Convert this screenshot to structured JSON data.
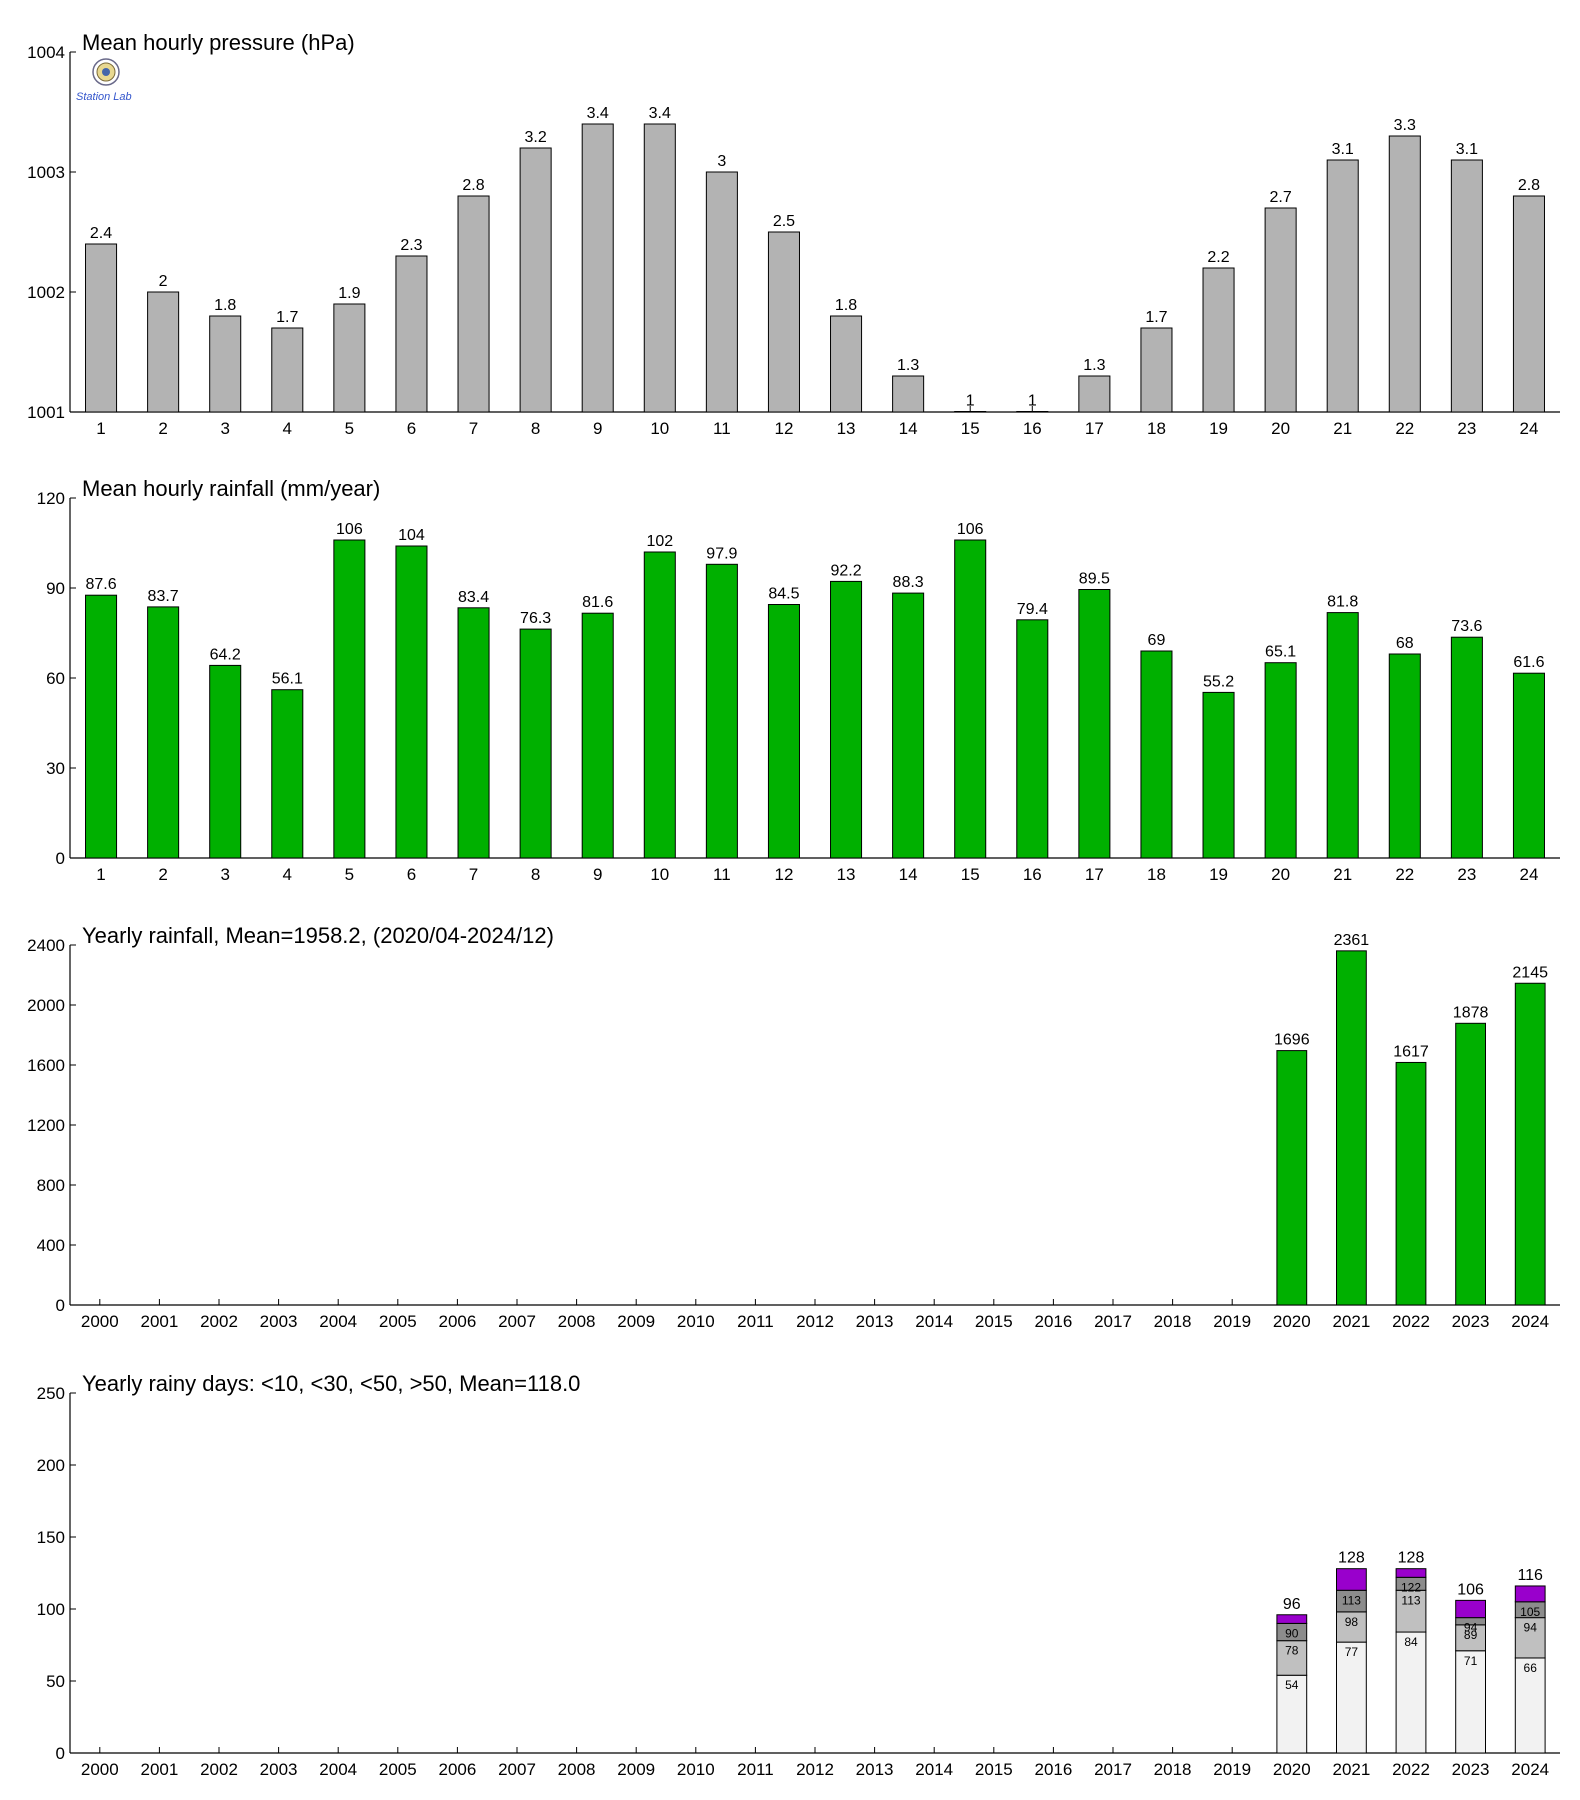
{
  "logo": {
    "text": "Station Lab"
  },
  "chart_data": [
    {
      "id": "pressure",
      "type": "bar",
      "title": "Mean hourly pressure (hPa)",
      "categories": [
        "1",
        "2",
        "3",
        "4",
        "5",
        "6",
        "7",
        "8",
        "9",
        "10",
        "11",
        "12",
        "13",
        "14",
        "15",
        "16",
        "17",
        "18",
        "19",
        "20",
        "21",
        "22",
        "23",
        "24"
      ],
      "values": [
        1002.4,
        1002.0,
        1001.8,
        1001.7,
        1001.9,
        1002.3,
        1002.8,
        1003.2,
        1003.4,
        1003.4,
        1003.0,
        1002.5,
        1001.8,
        1001.3,
        1001.0,
        1001.0,
        1001.3,
        1001.7,
        1002.2,
        1002.7,
        1003.1,
        1003.3,
        1003.1,
        1002.8
      ],
      "labels": [
        "2.4",
        "2",
        "1.8",
        "1.7",
        "1.9",
        "2.3",
        "2.8",
        "3.2",
        "3.4",
        "3.4",
        "3",
        "2.5",
        "1.8",
        "1.3",
        "1",
        "1",
        "1.3",
        "1.7",
        "2.2",
        "2.7",
        "3.1",
        "3.3",
        "3.1",
        "2.8"
      ],
      "ylim": [
        1001,
        1004
      ],
      "yticks": [
        1001,
        1002,
        1003,
        1004
      ],
      "color": "#b3b3b3"
    },
    {
      "id": "hourly-rain",
      "type": "bar",
      "title": "Mean hourly rainfall (mm/year)",
      "categories": [
        "1",
        "2",
        "3",
        "4",
        "5",
        "6",
        "7",
        "8",
        "9",
        "10",
        "11",
        "12",
        "13",
        "14",
        "15",
        "16",
        "17",
        "18",
        "19",
        "20",
        "21",
        "22",
        "23",
        "24"
      ],
      "values": [
        87.6,
        83.7,
        64.2,
        56.1,
        106,
        104,
        83.4,
        76.3,
        81.6,
        102,
        97.9,
        84.5,
        92.2,
        88.3,
        106,
        79.4,
        89.5,
        69,
        55.2,
        65.1,
        81.8,
        68,
        73.6,
        61.6
      ],
      "labels": [
        "87.6",
        "83.7",
        "64.2",
        "56.1",
        "106",
        "104",
        "83.4",
        "76.3",
        "81.6",
        "102",
        "97.9",
        "84.5",
        "92.2",
        "88.3",
        "106",
        "79.4",
        "89.5",
        "69",
        "55.2",
        "65.1",
        "81.8",
        "68",
        "73.6",
        "61.6"
      ],
      "ylim": [
        0,
        120
      ],
      "yticks": [
        0,
        30,
        60,
        90,
        120
      ],
      "color": "#00b000"
    },
    {
      "id": "yearly-rain",
      "type": "bar",
      "title": "Yearly rainfall, Mean=1958.2, (2020/04-2024/12)",
      "categories": [
        "2000",
        "2001",
        "2002",
        "2003",
        "2004",
        "2005",
        "2006",
        "2007",
        "2008",
        "2009",
        "2010",
        "2011",
        "2012",
        "2013",
        "2014",
        "2015",
        "2016",
        "2017",
        "2018",
        "2019",
        "2020",
        "2021",
        "2022",
        "2023",
        "2024"
      ],
      "values": [
        null,
        null,
        null,
        null,
        null,
        null,
        null,
        null,
        null,
        null,
        null,
        null,
        null,
        null,
        null,
        null,
        null,
        null,
        null,
        null,
        1696,
        2361,
        1617,
        1878,
        2145
      ],
      "labels": [
        null,
        null,
        null,
        null,
        null,
        null,
        null,
        null,
        null,
        null,
        null,
        null,
        null,
        null,
        null,
        null,
        null,
        null,
        null,
        null,
        "1696",
        "2361",
        "1617",
        "1878",
        "2145"
      ],
      "ylim": [
        0,
        2400
      ],
      "yticks": [
        0,
        400,
        800,
        1200,
        1600,
        2000,
        2400
      ],
      "color": "#00b000"
    },
    {
      "id": "rainy-days",
      "type": "bar",
      "stacked": true,
      "title": "Yearly rainy days: <10, <30, <50, >50, Mean=118.0",
      "categories": [
        "2000",
        "2001",
        "2002",
        "2003",
        "2004",
        "2005",
        "2006",
        "2007",
        "2008",
        "2009",
        "2010",
        "2011",
        "2012",
        "2013",
        "2014",
        "2015",
        "2016",
        "2017",
        "2018",
        "2019",
        "2020",
        "2021",
        "2022",
        "2023",
        "2024"
      ],
      "cumulative": [
        null,
        null,
        null,
        null,
        null,
        null,
        null,
        null,
        null,
        null,
        null,
        null,
        null,
        null,
        null,
        null,
        null,
        null,
        null,
        null,
        [
          54,
          78,
          90,
          96
        ],
        [
          77,
          98,
          113,
          128
        ],
        [
          84,
          113,
          122,
          128
        ],
        [
          71,
          89,
          94,
          106
        ],
        [
          66,
          94,
          105,
          116
        ]
      ],
      "segment_labels": [
        null,
        null,
        null,
        null,
        null,
        null,
        null,
        null,
        null,
        null,
        null,
        null,
        null,
        null,
        null,
        null,
        null,
        null,
        null,
        null,
        [
          "54",
          "78",
          "90"
        ],
        [
          "77",
          "98",
          "113"
        ],
        [
          "84",
          "113",
          "122"
        ],
        [
          "71",
          "89",
          "94"
        ],
        [
          "66",
          "94",
          "105"
        ]
      ],
      "totals": [
        null,
        null,
        null,
        null,
        null,
        null,
        null,
        null,
        null,
        null,
        null,
        null,
        null,
        null,
        null,
        null,
        null,
        null,
        null,
        null,
        "96",
        "128",
        "128",
        "106",
        "116"
      ],
      "ylim": [
        0,
        250
      ],
      "yticks": [
        0,
        50,
        100,
        150,
        200,
        250
      ],
      "segment_colors": [
        "#f2f2f2",
        "#c0c0c0",
        "#8c8c8c",
        "#9900cc"
      ]
    }
  ]
}
